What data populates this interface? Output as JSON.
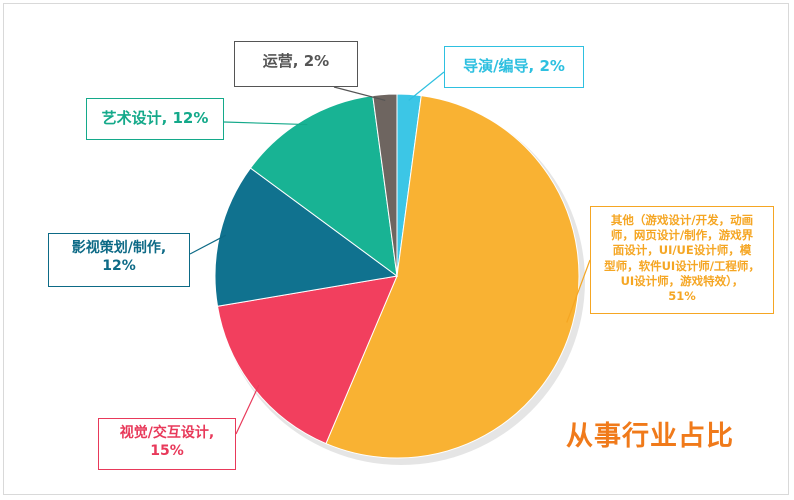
{
  "chart_data": {
    "type": "pie",
    "title": "从事行业占比",
    "slices": [
      {
        "label": "导演/编导",
        "value": 2,
        "pct_label": "2%",
        "color": "#3cc6e6"
      },
      {
        "label": "其他（游戏设计/开发，动画师，网页设计/制作，游戏界面设计，UI/UE设计师，模型师，软件UI设计师/工程师，UI设计师，游戏特效）",
        "value": 51,
        "pct_label": "51%",
        "color": "#f9b233"
      },
      {
        "label": "视觉/交互设计",
        "value": 15,
        "pct_label": "15%",
        "color": "#f23f5e"
      },
      {
        "label": "影视策划/制作",
        "value": 12,
        "pct_label": "12%",
        "color": "#10728f"
      },
      {
        "label": "艺术设计",
        "value": 12,
        "pct_label": "12%",
        "color": "#18b394"
      },
      {
        "label": "运营",
        "value": 2,
        "pct_label": "2%",
        "color": "#6e6560"
      }
    ]
  },
  "callouts": {
    "director": {
      "line1": "导演/编导, 2%",
      "color": "#2ec0e0"
    },
    "other": {
      "lines": [
        "其他（游戏设计/开发，动画",
        "师，网页设计/制作，游戏界",
        "面设计，UI/UE设计师，模",
        "型师，软件UI设计师/工程师，",
        "UI设计师，游戏特效），",
        "51%"
      ],
      "color": "#f5a623"
    },
    "visual": {
      "line1": "视觉/交互设计,",
      "line2": "15%",
      "color": "#e8395a"
    },
    "film": {
      "line1": "影视策划/制作,",
      "line2": "12%",
      "color": "#0d6a86"
    },
    "art": {
      "line1": "艺术设计, 12%",
      "color": "#14a98a"
    },
    "ops": {
      "line1": "运营, 2%",
      "color": "#555555"
    }
  }
}
